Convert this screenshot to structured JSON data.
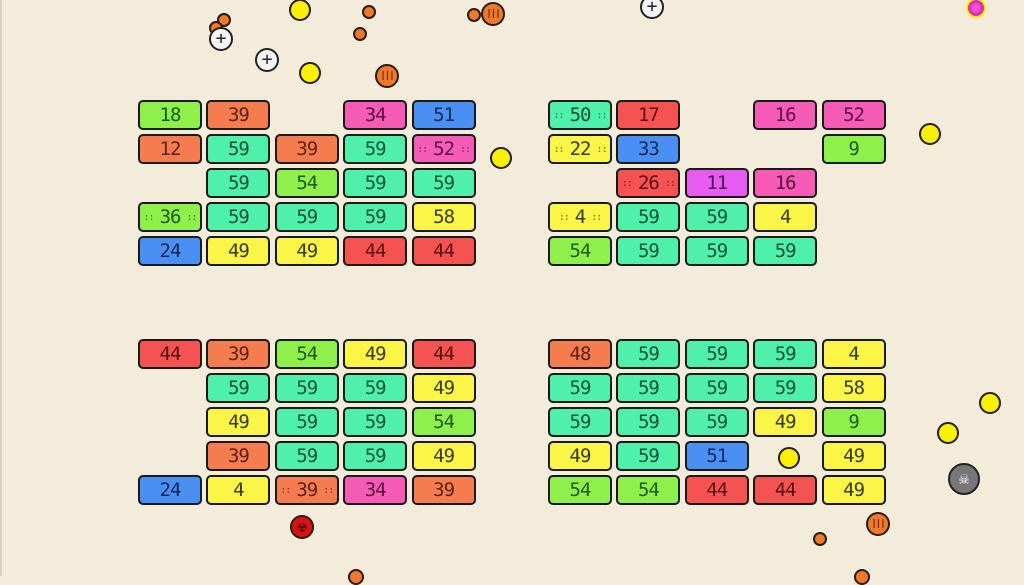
{
  "colors": {
    "lime": "#8ff04c",
    "orange": "#f57c4e",
    "pink": "#f65bb6",
    "blue": "#4a90f2",
    "teal": "#4ff0aa",
    "yellow": "#faf547",
    "red": "#f55252",
    "magenta": "#e65cf2",
    "background": "#f3ecda"
  },
  "text_colors": {
    "lime": "#1f5a10",
    "orange": "#5a2210",
    "pink": "#5a1040",
    "blue": "#10265a",
    "teal": "#10503a",
    "yellow": "#3a3a10",
    "red": "#5a1010",
    "magenta": "#4a1050"
  },
  "groups": [
    {
      "rows": [
        [
          {
            "v": "18",
            "c": "lime"
          },
          {
            "v": "39",
            "c": "orange"
          },
          null,
          {
            "v": "34",
            "c": "pink"
          },
          {
            "v": "51",
            "c": "blue"
          }
        ],
        [
          {
            "v": "12",
            "c": "orange"
          },
          {
            "v": "59",
            "c": "teal"
          },
          {
            "v": "39",
            "c": "orange"
          },
          {
            "v": "59",
            "c": "teal"
          },
          {
            "v": "52",
            "c": "pink",
            "special": true
          }
        ],
        [
          null,
          {
            "v": "59",
            "c": "teal"
          },
          {
            "v": "54",
            "c": "lime"
          },
          {
            "v": "59",
            "c": "teal"
          },
          {
            "v": "59",
            "c": "teal"
          }
        ],
        [
          {
            "v": "36",
            "c": "lime",
            "special": true
          },
          {
            "v": "59",
            "c": "teal"
          },
          {
            "v": "59",
            "c": "teal"
          },
          {
            "v": "59",
            "c": "teal"
          },
          {
            "v": "58",
            "c": "yellow"
          }
        ],
        [
          {
            "v": "24",
            "c": "blue"
          },
          {
            "v": "49",
            "c": "yellow"
          },
          {
            "v": "49",
            "c": "yellow"
          },
          {
            "v": "44",
            "c": "red"
          },
          {
            "v": "44",
            "c": "red"
          }
        ]
      ]
    },
    {
      "rows": [
        [
          {
            "v": "50",
            "c": "teal",
            "special": true
          },
          {
            "v": "17",
            "c": "red"
          },
          null,
          {
            "v": "16",
            "c": "pink"
          },
          {
            "v": "52",
            "c": "pink"
          }
        ],
        [
          {
            "v": "22",
            "c": "yellow",
            "special": true
          },
          {
            "v": "33",
            "c": "blue"
          },
          null,
          null,
          {
            "v": "9",
            "c": "lime"
          }
        ],
        [
          null,
          {
            "v": "26",
            "c": "red",
            "special": true
          },
          {
            "v": "11",
            "c": "magenta"
          },
          {
            "v": "16",
            "c": "pink"
          },
          null
        ],
        [
          {
            "v": "4",
            "c": "yellow",
            "special": true
          },
          {
            "v": "59",
            "c": "teal"
          },
          {
            "v": "59",
            "c": "teal"
          },
          {
            "v": "4",
            "c": "yellow"
          },
          null
        ],
        [
          {
            "v": "54",
            "c": "lime"
          },
          {
            "v": "59",
            "c": "teal"
          },
          {
            "v": "59",
            "c": "teal"
          },
          {
            "v": "59",
            "c": "teal"
          },
          null
        ]
      ]
    },
    {
      "rows": [
        [
          {
            "v": "44",
            "c": "red"
          },
          {
            "v": "39",
            "c": "orange"
          },
          {
            "v": "54",
            "c": "lime"
          },
          {
            "v": "49",
            "c": "yellow"
          },
          {
            "v": "44",
            "c": "red"
          }
        ],
        [
          null,
          {
            "v": "59",
            "c": "teal"
          },
          {
            "v": "59",
            "c": "teal"
          },
          {
            "v": "59",
            "c": "teal"
          },
          {
            "v": "49",
            "c": "yellow"
          }
        ],
        [
          null,
          {
            "v": "49",
            "c": "yellow"
          },
          {
            "v": "59",
            "c": "teal"
          },
          {
            "v": "59",
            "c": "teal"
          },
          {
            "v": "54",
            "c": "lime"
          }
        ],
        [
          null,
          {
            "v": "39",
            "c": "orange"
          },
          {
            "v": "59",
            "c": "teal"
          },
          {
            "v": "59",
            "c": "teal"
          },
          {
            "v": "49",
            "c": "yellow"
          }
        ],
        [
          {
            "v": "24",
            "c": "blue"
          },
          {
            "v": "4",
            "c": "yellow"
          },
          {
            "v": "39",
            "c": "orange",
            "special": true
          },
          {
            "v": "34",
            "c": "pink"
          },
          {
            "v": "39",
            "c": "orange"
          }
        ]
      ]
    },
    {
      "rows": [
        [
          {
            "v": "48",
            "c": "orange"
          },
          {
            "v": "59",
            "c": "teal"
          },
          {
            "v": "59",
            "c": "teal"
          },
          {
            "v": "59",
            "c": "teal"
          },
          {
            "v": "4",
            "c": "yellow"
          }
        ],
        [
          {
            "v": "59",
            "c": "teal"
          },
          {
            "v": "59",
            "c": "teal"
          },
          {
            "v": "59",
            "c": "teal"
          },
          {
            "v": "59",
            "c": "teal"
          },
          {
            "v": "58",
            "c": "yellow"
          }
        ],
        [
          {
            "v": "59",
            "c": "teal"
          },
          {
            "v": "59",
            "c": "teal"
          },
          {
            "v": "59",
            "c": "teal"
          },
          {
            "v": "49",
            "c": "yellow"
          },
          {
            "v": "9",
            "c": "lime"
          }
        ],
        [
          {
            "v": "49",
            "c": "yellow"
          },
          {
            "v": "59",
            "c": "teal"
          },
          {
            "v": "51",
            "c": "blue"
          },
          null,
          {
            "v": "49",
            "c": "yellow"
          }
        ],
        [
          {
            "v": "54",
            "c": "lime"
          },
          {
            "v": "54",
            "c": "lime"
          },
          {
            "v": "44",
            "c": "red"
          },
          {
            "v": "44",
            "c": "red"
          },
          {
            "v": "49",
            "c": "yellow"
          }
        ]
      ]
    }
  ],
  "ball_types": {
    "yellow": {
      "icon": "yellow-ball-icon",
      "fill": "#f8f200"
    },
    "orange": {
      "icon": "orange-ball-icon",
      "fill": "#f0782a"
    },
    "triple": {
      "icon": "triple-ball-powerup-icon",
      "fill": "#f0782a"
    },
    "plus": {
      "icon": "plus-ball-powerup-icon",
      "fill": "#f4f4f4"
    },
    "magenta": {
      "icon": "magenta-ball-icon",
      "fill": "#e030c0"
    },
    "skull": {
      "icon": "skull-icon",
      "fill": "#888888"
    },
    "radiation": {
      "icon": "radiation-icon",
      "fill": "#e01010"
    }
  }
}
